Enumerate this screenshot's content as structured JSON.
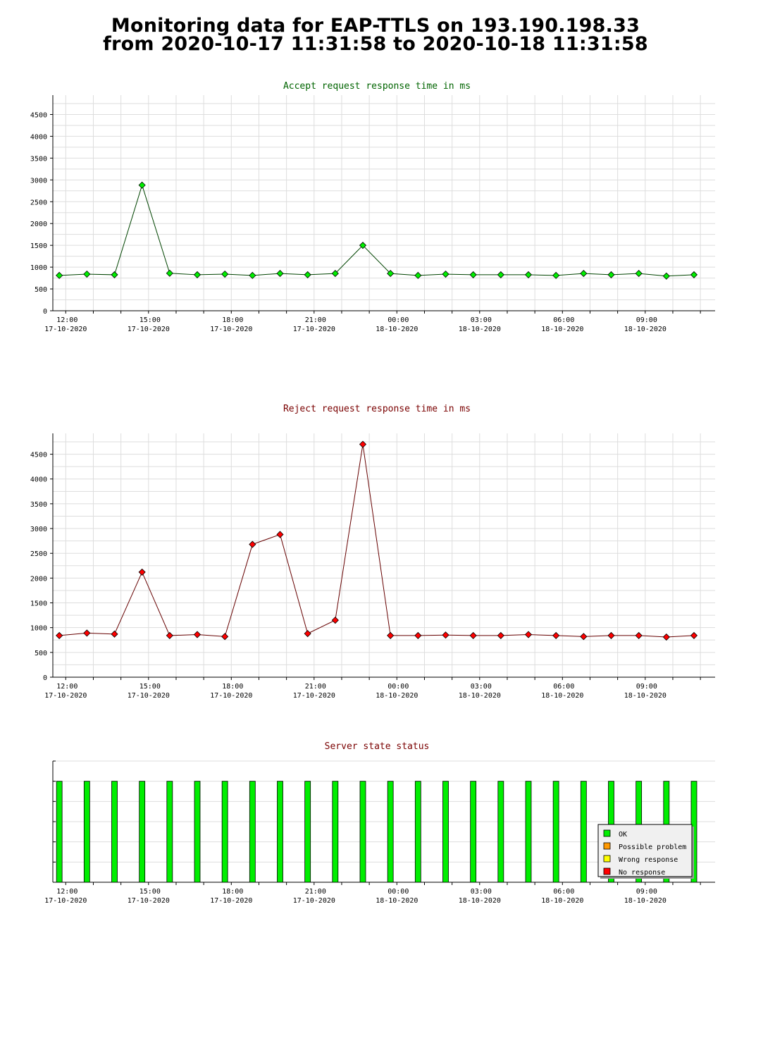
{
  "header": {
    "title_line1": "Monitoring data for EAP-TTLS on 193.190.198.33",
    "title_line2": "from 2020-10-17 11:31:58 to 2020-10-18 11:31:58"
  },
  "colors": {
    "accept_title": "#006400",
    "reject_title": "#7a0000",
    "status_title": "#7a0000",
    "accept_marker": "#00ee00",
    "accept_line": "#004400",
    "reject_marker": "#ff0000",
    "reject_line": "#660000",
    "grid": "#dddddd",
    "ok": "#00ee00",
    "possible_problem": "#ff9900",
    "wrong_response": "#ffff00",
    "no_response": "#ff0000"
  },
  "chart_data": [
    {
      "type": "line",
      "title": "Accept request response time in ms",
      "x_axis": "time",
      "x": [
        "11:46",
        "12:46",
        "13:46",
        "14:46",
        "15:46",
        "16:46",
        "17:46",
        "18:46",
        "19:46",
        "20:46",
        "21:46",
        "22:46",
        "23:46",
        "00:46",
        "01:46",
        "02:46",
        "03:46",
        "04:46",
        "05:46",
        "06:46",
        "07:46",
        "08:46",
        "09:46",
        "10:46"
      ],
      "values": [
        810,
        840,
        825,
        2880,
        860,
        825,
        840,
        810,
        855,
        825,
        855,
        1500,
        855,
        810,
        840,
        825,
        825,
        825,
        810,
        855,
        825,
        855,
        795,
        825
      ],
      "ylim": [
        0,
        4750
      ],
      "y_ticks": [
        0,
        500,
        1000,
        1500,
        2000,
        2500,
        3000,
        3500,
        4000,
        4500
      ],
      "x_ticks": [
        {
          "time": "12:00",
          "date": "17-10-2020"
        },
        {
          "time": "15:00",
          "date": "17-10-2020"
        },
        {
          "time": "18:00",
          "date": "17-10-2020"
        },
        {
          "time": "21:00",
          "date": "17-10-2020"
        },
        {
          "time": "00:00",
          "date": "18-10-2020"
        },
        {
          "time": "03:00",
          "date": "18-10-2020"
        },
        {
          "time": "06:00",
          "date": "18-10-2020"
        },
        {
          "time": "09:00",
          "date": "18-10-2020"
        }
      ],
      "grid": true
    },
    {
      "type": "line",
      "title": "Reject request response time in ms",
      "x_axis": "time",
      "x": [
        "11:46",
        "12:46",
        "13:46",
        "14:46",
        "15:46",
        "16:46",
        "17:46",
        "18:46",
        "19:46",
        "20:46",
        "21:46",
        "22:46",
        "23:46",
        "00:46",
        "01:46",
        "02:46",
        "03:46",
        "04:46",
        "05:46",
        "06:46",
        "07:46",
        "08:46",
        "09:46",
        "10:46"
      ],
      "values": [
        840,
        890,
        870,
        2120,
        840,
        860,
        820,
        2680,
        2880,
        880,
        1150,
        4700,
        840,
        840,
        850,
        840,
        840,
        860,
        840,
        820,
        840,
        840,
        810,
        840
      ],
      "ylim": [
        0,
        4750
      ],
      "y_ticks": [
        0,
        500,
        1000,
        1500,
        2000,
        2500,
        3000,
        3500,
        4000,
        4500
      ],
      "x_ticks": [
        {
          "time": "12:00",
          "date": "17-10-2020"
        },
        {
          "time": "15:00",
          "date": "17-10-2020"
        },
        {
          "time": "18:00",
          "date": "17-10-2020"
        },
        {
          "time": "21:00",
          "date": "17-10-2020"
        },
        {
          "time": "00:00",
          "date": "18-10-2020"
        },
        {
          "time": "03:00",
          "date": "18-10-2020"
        },
        {
          "time": "06:00",
          "date": "18-10-2020"
        },
        {
          "time": "09:00",
          "date": "18-10-2020"
        }
      ],
      "grid": true
    },
    {
      "type": "bar",
      "title": "Server state status",
      "x": [
        "11:46",
        "12:46",
        "13:46",
        "14:46",
        "15:46",
        "16:46",
        "17:46",
        "18:46",
        "19:46",
        "20:46",
        "21:46",
        "22:46",
        "23:46",
        "00:46",
        "01:46",
        "02:46",
        "03:46",
        "04:46",
        "05:46",
        "06:46",
        "07:46",
        "08:46",
        "09:46",
        "10:46"
      ],
      "states": [
        "OK",
        "OK",
        "OK",
        "OK",
        "OK",
        "OK",
        "OK",
        "OK",
        "OK",
        "OK",
        "OK",
        "OK",
        "OK",
        "OK",
        "OK",
        "OK",
        "OK",
        "OK",
        "OK",
        "OK",
        "OK",
        "OK",
        "OK",
        "OK"
      ],
      "x_ticks": [
        {
          "time": "12:00",
          "date": "17-10-2020"
        },
        {
          "time": "15:00",
          "date": "17-10-2020"
        },
        {
          "time": "18:00",
          "date": "17-10-2020"
        },
        {
          "time": "21:00",
          "date": "17-10-2020"
        },
        {
          "time": "00:00",
          "date": "18-10-2020"
        },
        {
          "time": "03:00",
          "date": "18-10-2020"
        },
        {
          "time": "06:00",
          "date": "18-10-2020"
        },
        {
          "time": "09:00",
          "date": "18-10-2020"
        }
      ],
      "legend": {
        "placement": "bottom-right",
        "entries": [
          {
            "label": "OK",
            "color": "#00ee00"
          },
          {
            "label": "Possible problem",
            "color": "#ff9900"
          },
          {
            "label": "Wrong response",
            "color": "#ffff00"
          },
          {
            "label": "No response",
            "color": "#ff0000"
          }
        ]
      }
    }
  ]
}
